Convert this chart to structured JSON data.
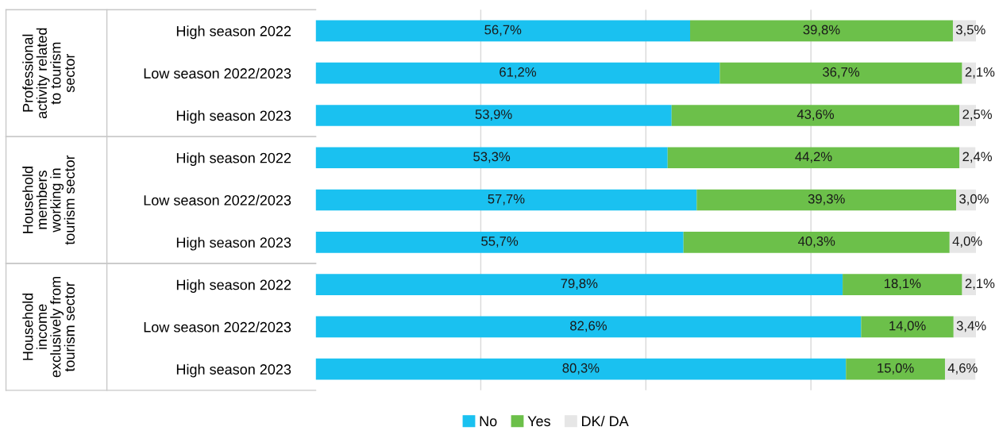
{
  "chart_data": {
    "type": "bar",
    "orientation": "horizontal",
    "stacked": true,
    "categories": [
      "High season 2022",
      "Low season 2022/2023",
      "High season 2023",
      "High season 2022",
      "Low season 2022/2023",
      "High season 2023",
      "High season 2022",
      "Low season 2022/2023",
      "High season 2023"
    ],
    "series": [
      {
        "name": "No",
        "color": "#1ac1f0",
        "values": [
          56.7,
          61.2,
          53.9,
          53.3,
          57.7,
          55.7,
          79.8,
          82.6,
          80.3
        ],
        "value_labels": [
          "56,7%",
          "61,2%",
          "53,9%",
          "53,3%",
          "57,7%",
          "55,7%",
          "79,8%",
          "82,6%",
          "80,3%"
        ]
      },
      {
        "name": "Yes",
        "color": "#6cc04a",
        "values": [
          39.8,
          36.7,
          43.6,
          44.2,
          39.3,
          40.3,
          18.1,
          14.0,
          15.0
        ],
        "value_labels": [
          "39,8%",
          "36,7%",
          "43,6%",
          "44,2%",
          "39,3%",
          "40,3%",
          "18,1%",
          "14,0%",
          "15,0%"
        ]
      },
      {
        "name": "DK/ DA",
        "color": "#e6e6e6",
        "values": [
          3.5,
          2.1,
          2.5,
          2.4,
          3.0,
          4.0,
          2.1,
          3.4,
          4.6
        ],
        "value_labels": [
          "3,5%",
          "2,1%",
          "2,5%",
          "2,4%",
          "3,0%",
          "4,0%",
          "2,1%",
          "3,4%",
          "4,6%"
        ]
      }
    ],
    "annotations": [
      "Professional\nactivity related\nto tourism\nsector",
      "Household\nmembers\nworking in\ntourism sector",
      "Household\nincome\nexclusively from\ntourism sector"
    ],
    "xlim": [
      0,
      100
    ],
    "xticks": [
      {
        "value": 25,
        "label": null
      },
      {
        "value": 50,
        "label": null
      },
      {
        "value": 75,
        "label": null
      }
    ],
    "tick_labels": "y",
    "grid": "x",
    "legend": "bottom"
  }
}
